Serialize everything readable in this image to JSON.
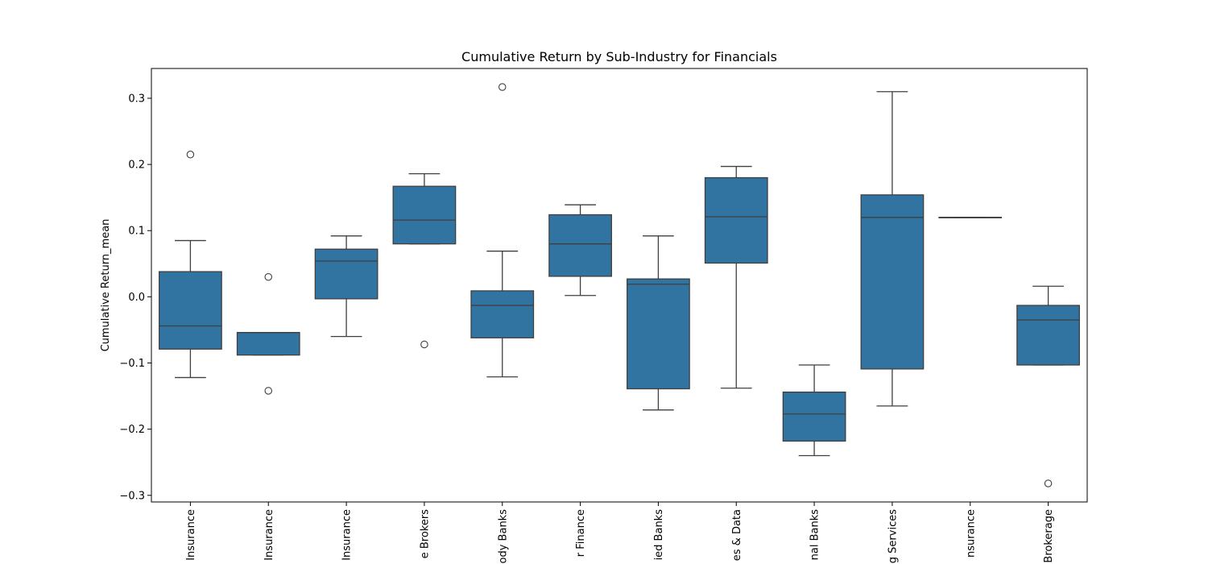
{
  "chart_data": {
    "type": "box",
    "title": "Cumulative Return by Sub-Industry for Financials",
    "xlabel": "",
    "ylabel": "Cumulative Return_mean",
    "ylim": [
      -0.31,
      0.345
    ],
    "yticks": [
      -0.3,
      -0.2,
      -0.1,
      0.0,
      0.1,
      0.2,
      0.3
    ],
    "ytick_labels": [
      "−0.3",
      "−0.2",
      "−0.1",
      "0.0",
      "0.1",
      "0.2",
      "0.3"
    ],
    "category_labels_visible": [
      "Insurance",
      "Insurance",
      "Insurance",
      "e Brokers",
      "ody Banks",
      "r Finance",
      "ied Banks",
      "es & Data",
      "nal Banks",
      "g Services",
      "nsurance",
      "Brokerage"
    ],
    "box_color": "#3274a1",
    "boxes": [
      {
        "whislo": -0.122,
        "q1": -0.079,
        "med": -0.044,
        "q3": 0.038,
        "whishi": 0.085,
        "fliers": [
          0.215
        ]
      },
      {
        "whislo": -0.088,
        "q1": -0.088,
        "med": -0.054,
        "q3": -0.054,
        "whishi": -0.054,
        "fliers": [
          0.03,
          -0.142
        ]
      },
      {
        "whislo": -0.06,
        "q1": -0.003,
        "med": 0.054,
        "q3": 0.072,
        "whishi": 0.092,
        "fliers": []
      },
      {
        "whislo": 0.08,
        "q1": 0.08,
        "med": 0.116,
        "q3": 0.167,
        "whishi": 0.186,
        "fliers": [
          -0.072
        ]
      },
      {
        "whislo": -0.121,
        "q1": -0.062,
        "med": -0.013,
        "q3": 0.009,
        "whishi": 0.069,
        "fliers": [
          0.317
        ]
      },
      {
        "whislo": 0.002,
        "q1": 0.031,
        "med": 0.08,
        "q3": 0.124,
        "whishi": 0.139,
        "fliers": []
      },
      {
        "whislo": -0.171,
        "q1": -0.139,
        "med": 0.019,
        "q3": 0.027,
        "whishi": 0.092,
        "fliers": []
      },
      {
        "whislo": -0.138,
        "q1": 0.051,
        "med": 0.121,
        "q3": 0.18,
        "whishi": 0.197,
        "fliers": []
      },
      {
        "whislo": -0.24,
        "q1": -0.218,
        "med": -0.177,
        "q3": -0.144,
        "whishi": -0.103,
        "fliers": []
      },
      {
        "whislo": -0.165,
        "q1": -0.109,
        "med": 0.12,
        "q3": 0.154,
        "whishi": 0.31,
        "fliers": []
      },
      {
        "whislo": 0.12,
        "q1": 0.12,
        "med": 0.12,
        "q3": 0.12,
        "whishi": 0.12,
        "fliers": []
      },
      {
        "whislo": -0.103,
        "q1": -0.103,
        "med": -0.035,
        "q3": -0.013,
        "whishi": 0.016,
        "fliers": [
          -0.282
        ]
      }
    ]
  }
}
